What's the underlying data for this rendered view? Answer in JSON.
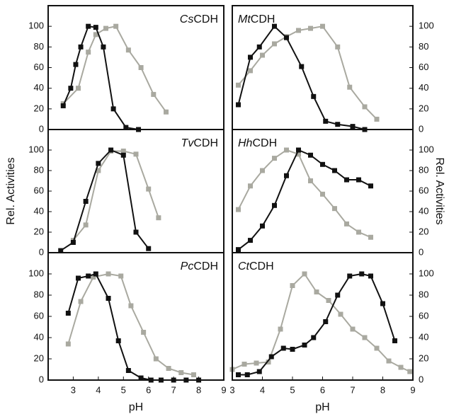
{
  "chart_data": [
    {
      "type": "line",
      "title_italic": "Cs",
      "title": "CDH",
      "xlim": [
        2,
        9
      ],
      "ylim": [
        0,
        120
      ],
      "yticks": [
        0,
        20,
        40,
        60,
        80,
        100
      ],
      "series": [
        {
          "color": "#a9a9a0",
          "x": [
            2.6,
            3.2,
            3.6,
            3.9,
            4.3,
            4.7,
            5.2,
            5.7,
            6.2,
            6.7
          ],
          "values": [
            25,
            40,
            75,
            92,
            98,
            100,
            77,
            60,
            34,
            17
          ]
        },
        {
          "color": "#111111",
          "x": [
            2.6,
            2.9,
            3.1,
            3.3,
            3.6,
            3.9,
            4.2,
            4.6,
            5.1,
            5.6
          ],
          "values": [
            23,
            40,
            63,
            80,
            100,
            99,
            80,
            20,
            2,
            0
          ]
        }
      ]
    },
    {
      "type": "line",
      "title_italic": "Mt",
      "title": "CDH",
      "xlim": [
        3,
        9
      ],
      "ylim": [
        0,
        120
      ],
      "yticks": [
        0,
        20,
        40,
        60,
        80,
        100
      ],
      "series": [
        {
          "color": "#a9a9a0",
          "x": [
            3.2,
            3.6,
            4.0,
            4.4,
            4.8,
            5.2,
            5.6,
            6.0,
            6.5,
            6.9,
            7.4,
            7.8
          ],
          "values": [
            43,
            57,
            72,
            83,
            90,
            96,
            98,
            100,
            80,
            41,
            22,
            10
          ]
        },
        {
          "color": "#111111",
          "x": [
            3.2,
            3.6,
            3.9,
            4.4,
            4.8,
            5.3,
            5.7,
            6.1,
            6.5,
            7.0,
            7.4
          ],
          "values": [
            24,
            70,
            80,
            100,
            89,
            61,
            32,
            8,
            5,
            3,
            0
          ]
        }
      ]
    },
    {
      "type": "line",
      "title_italic": "Tv",
      "title": "CDH",
      "ylabel": "Rel. Activities",
      "xlim": [
        2,
        9
      ],
      "ylim": [
        0,
        120
      ],
      "yticks": [
        0,
        20,
        40,
        60,
        80,
        100
      ],
      "series": [
        {
          "color": "#a9a9a0",
          "x": [
            3.0,
            3.5,
            4.0,
            4.5,
            5.0,
            5.5,
            6.0,
            6.4
          ],
          "values": [
            12,
            27,
            80,
            99,
            99,
            96,
            62,
            34
          ]
        },
        {
          "color": "#111111",
          "x": [
            2.5,
            3.0,
            3.5,
            4.0,
            4.5,
            5.0,
            5.5,
            6.0
          ],
          "values": [
            2,
            10,
            50,
            87,
            100,
            95,
            20,
            4
          ]
        }
      ]
    },
    {
      "type": "line",
      "title_italic": "Hh",
      "title": "CDH",
      "ylabel": "Rel. Activities",
      "xlim": [
        3,
        9
      ],
      "ylim": [
        0,
        120
      ],
      "yticks": [
        0,
        20,
        40,
        60,
        80,
        100
      ],
      "series": [
        {
          "color": "#a9a9a0",
          "x": [
            3.2,
            3.6,
            4.0,
            4.4,
            4.8,
            5.2,
            5.6,
            6.0,
            6.4,
            6.8,
            7.2,
            7.6
          ],
          "values": [
            42,
            65,
            80,
            92,
            100,
            96,
            70,
            57,
            43,
            28,
            20,
            15
          ]
        },
        {
          "color": "#111111",
          "x": [
            3.2,
            3.6,
            4.0,
            4.4,
            4.8,
            5.2,
            5.6,
            6.0,
            6.4,
            6.8,
            7.2,
            7.6
          ],
          "values": [
            3,
            12,
            26,
            46,
            75,
            100,
            95,
            86,
            80,
            71,
            71,
            65
          ]
        }
      ]
    },
    {
      "type": "line",
      "title_italic": "Pc",
      "title": "CDH",
      "xlabel": "pH",
      "xlim": [
        2,
        9
      ],
      "ylim": [
        0,
        120
      ],
      "yticks": [
        0,
        20,
        40,
        60,
        80,
        100
      ],
      "xticks": [
        3,
        4,
        5,
        6,
        7,
        8,
        9
      ],
      "series": [
        {
          "color": "#a9a9a0",
          "x": [
            2.8,
            3.3,
            3.8,
            4.4,
            4.9,
            5.3,
            5.8,
            6.3,
            6.8,
            7.3,
            7.8
          ],
          "values": [
            34,
            74,
            97,
            100,
            98,
            70,
            45,
            20,
            11,
            7,
            5
          ]
        },
        {
          "color": "#111111",
          "x": [
            2.8,
            3.2,
            3.6,
            3.9,
            4.4,
            4.8,
            5.2,
            5.7,
            6.1,
            6.5,
            7.0,
            7.5,
            8.0
          ],
          "values": [
            63,
            96,
            98,
            100,
            77,
            37,
            9,
            2,
            0,
            0,
            0,
            0,
            0
          ]
        }
      ]
    },
    {
      "type": "line",
      "title_italic": "Ct",
      "title": "CDH",
      "xlabel": "pH",
      "xlim": [
        3,
        9
      ],
      "ylim": [
        0,
        120
      ],
      "yticks": [
        0,
        20,
        40,
        60,
        80,
        100
      ],
      "xticks": [
        3,
        4,
        5,
        6,
        7,
        8,
        9
      ],
      "series": [
        {
          "color": "#a9a9a0",
          "x": [
            3.0,
            3.4,
            3.8,
            4.2,
            4.6,
            5.0,
            5.4,
            5.8,
            6.2,
            6.6,
            7.0,
            7.4,
            7.8,
            8.2,
            8.6,
            8.9
          ],
          "values": [
            10,
            15,
            16,
            17,
            48,
            89,
            100,
            83,
            75,
            62,
            48,
            40,
            30,
            18,
            12,
            8
          ]
        },
        {
          "color": "#111111",
          "x": [
            3.2,
            3.5,
            3.9,
            4.3,
            4.7,
            5.0,
            5.4,
            5.7,
            6.1,
            6.5,
            6.9,
            7.3,
            7.6,
            8.0,
            8.4
          ],
          "values": [
            5,
            5,
            8,
            22,
            30,
            29,
            33,
            40,
            55,
            80,
            98,
            100,
            98,
            72,
            37
          ]
        }
      ]
    }
  ]
}
